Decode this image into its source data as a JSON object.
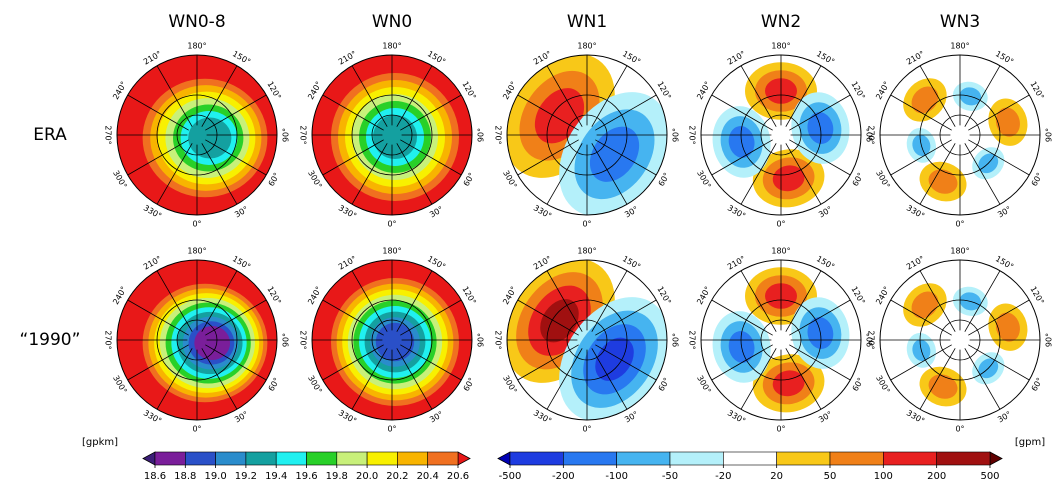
{
  "columns": [
    "WN0-8",
    "WN0",
    "WN1",
    "WN2",
    "WN3"
  ],
  "rows": [
    "ERA",
    "“1990”"
  ],
  "angle_labels": [
    {
      "value": 0,
      "label": "0°"
    },
    {
      "value": 30,
      "label": "30°"
    },
    {
      "value": 60,
      "label": "60°"
    },
    {
      "value": 90,
      "label": "90°"
    },
    {
      "value": 120,
      "label": "120°"
    },
    {
      "value": 150,
      "label": "150°"
    },
    {
      "value": 180,
      "label": "180°"
    },
    {
      "value": 210,
      "label": "210°"
    },
    {
      "value": 240,
      "label": "240°"
    },
    {
      "value": 270,
      "label": "270°"
    },
    {
      "value": 300,
      "label": "300°"
    },
    {
      "value": 330,
      "label": "330°"
    }
  ],
  "colorbars": [
    {
      "unit": "[gpkm]",
      "ticks": [
        18.6,
        18.8,
        {
          "value": 19,
          "label": "19.0"
        },
        19.2,
        19.4,
        19.6,
        19.8,
        {
          "value": 20,
          "label": "20.0"
        },
        20.2,
        20.4,
        20.6
      ],
      "colors": [
        "#3c1e78",
        "#7a1e9a",
        "#2a50c8",
        "#2a8ccc",
        "#14a0a0",
        "#20f0f0",
        "#28d028",
        "#c8f07a",
        "#f8f000",
        "#f8b400",
        "#f07020",
        "#e81818"
      ]
    },
    {
      "unit": "[gpm]",
      "ticks": [
        -500,
        -200,
        -100,
        -50,
        -20,
        20,
        50,
        100,
        200,
        500
      ],
      "colors": [
        "#0000b4",
        "#1e3ce0",
        "#2878f0",
        "#46b4f0",
        "#b4f0fa",
        "#ffffff",
        "#f8c818",
        "#f08018",
        "#e82020",
        "#a01010",
        "#600000"
      ]
    }
  ]
}
